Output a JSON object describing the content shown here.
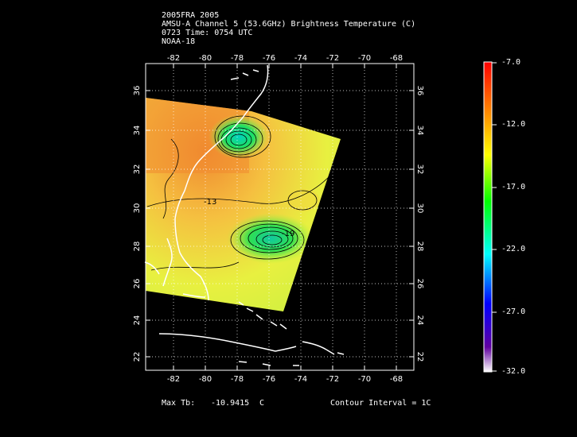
{
  "header": {
    "line1": "2005FRA 2005",
    "line2": "AMSU-A Channel 5 (53.6GHz) Brightness Temperature (C)",
    "line3": "0723 Time: 0754 UTC",
    "line4": "NOAA-18"
  },
  "map": {
    "lon_ticks": [
      "-82",
      "-80",
      "-78",
      "-76",
      "-74",
      "-72",
      "-70",
      "-68"
    ],
    "lat_ticks": [
      "36",
      "34",
      "32",
      "30",
      "28",
      "26",
      "24",
      "22"
    ],
    "contour_labels": [
      "-13",
      "-19"
    ]
  },
  "colorbar": {
    "labels": [
      "-7.0",
      "-12.0",
      "-17.0",
      "-22.0",
      "-27.0",
      "-32.0"
    ],
    "colors": [
      "#ff0000",
      "#ff7f00",
      "#ffff00",
      "#00ff00",
      "#00ffff",
      "#0000ff",
      "#5a00a0",
      "#ffffff"
    ]
  },
  "footer": {
    "max_tb_label": "Max Tb:",
    "max_tb_value": "-10.9415",
    "max_tb_unit": "C",
    "contour_interval": "Contour Interval = 1C"
  }
}
